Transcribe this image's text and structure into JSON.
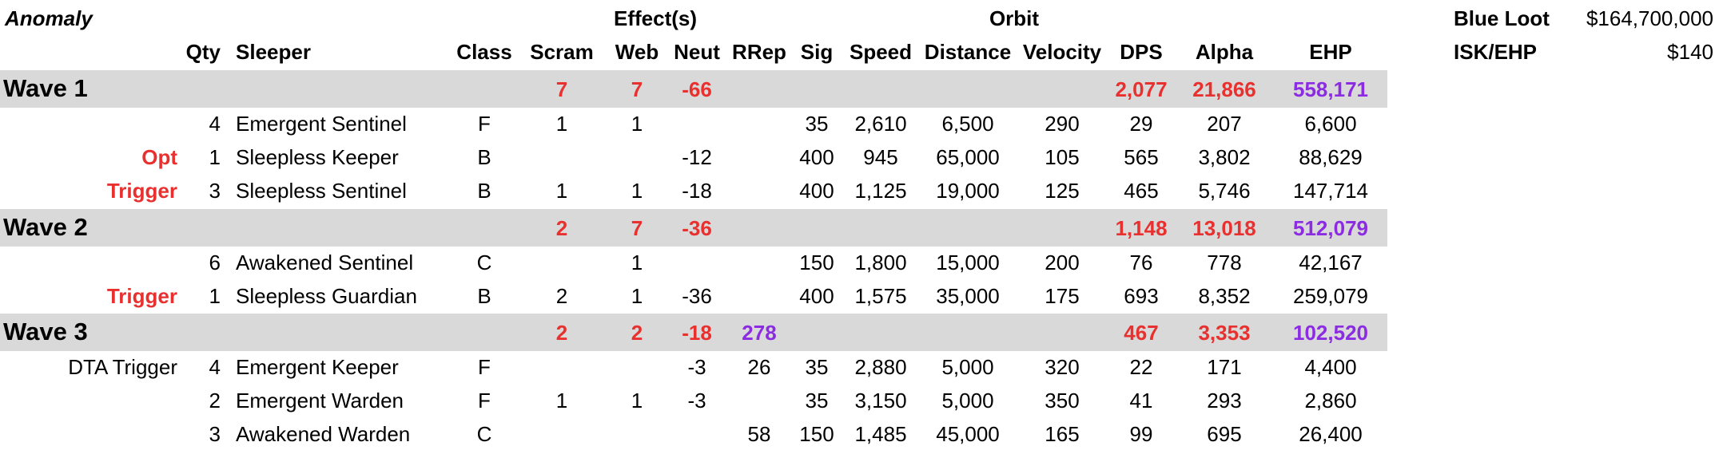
{
  "header": {
    "anomaly": "Anomaly",
    "effects": "Effect(s)",
    "orbit": "Orbit",
    "columns": {
      "qty": "Qty",
      "sleeper": "Sleeper",
      "class": "Class",
      "scram": "Scram",
      "web": "Web",
      "neut": "Neut",
      "rrep": "RRep",
      "sig": "Sig",
      "speed": "Speed",
      "distance": "Distance",
      "velocity": "Velocity",
      "dps": "DPS",
      "alpha": "Alpha",
      "ehp": "EHP"
    }
  },
  "summary": {
    "blue_loot_label": "Blue Loot",
    "blue_loot_value": "$164,700,000",
    "isk_ehp_label": "ISK/EHP",
    "isk_ehp_value": "$140"
  },
  "colors": {
    "red": "#e8312f",
    "purple": "#8b2be2",
    "band": "#d9d9d9"
  },
  "waves": [
    {
      "title": "Wave 1",
      "totals": {
        "scram": "7",
        "web": "7",
        "neut": "-66",
        "rrep": "",
        "dps": "2,077",
        "alpha": "21,866",
        "ehp": "558,171"
      },
      "rows": [
        {
          "tag": "",
          "qty": "4",
          "sleeper": "Emergent Sentinel",
          "class": "F",
          "scram": "1",
          "web": "1",
          "neut": "",
          "rrep": "",
          "sig": "35",
          "speed": "2,610",
          "distance": "6,500",
          "velocity": "290",
          "dps": "29",
          "alpha": "207",
          "ehp": "6,600"
        },
        {
          "tag": "Opt",
          "qty": "1",
          "sleeper": "Sleepless Keeper",
          "class": "B",
          "scram": "",
          "web": "",
          "neut": "-12",
          "rrep": "",
          "sig": "400",
          "speed": "945",
          "distance": "65,000",
          "velocity": "105",
          "dps": "565",
          "alpha": "3,802",
          "ehp": "88,629"
        },
        {
          "tag": "Trigger",
          "qty": "3",
          "sleeper": "Sleepless Sentinel",
          "class": "B",
          "scram": "1",
          "web": "1",
          "neut": "-18",
          "rrep": "",
          "sig": "400",
          "speed": "1,125",
          "distance": "19,000",
          "velocity": "125",
          "dps": "465",
          "alpha": "5,746",
          "ehp": "147,714"
        }
      ]
    },
    {
      "title": "Wave 2",
      "totals": {
        "scram": "2",
        "web": "7",
        "neut": "-36",
        "rrep": "",
        "dps": "1,148",
        "alpha": "13,018",
        "ehp": "512,079"
      },
      "rows": [
        {
          "tag": "",
          "qty": "6",
          "sleeper": "Awakened Sentinel",
          "class": "C",
          "scram": "",
          "web": "1",
          "neut": "",
          "rrep": "",
          "sig": "150",
          "speed": "1,800",
          "distance": "15,000",
          "velocity": "200",
          "dps": "76",
          "alpha": "778",
          "ehp": "42,167"
        },
        {
          "tag": "Trigger",
          "qty": "1",
          "sleeper": "Sleepless Guardian",
          "class": "B",
          "scram": "2",
          "web": "1",
          "neut": "-36",
          "rrep": "",
          "sig": "400",
          "speed": "1,575",
          "distance": "35,000",
          "velocity": "175",
          "dps": "693",
          "alpha": "8,352",
          "ehp": "259,079"
        }
      ]
    },
    {
      "title": "Wave 3",
      "totals": {
        "scram": "2",
        "web": "2",
        "neut": "-18",
        "rrep": "278",
        "dps": "467",
        "alpha": "3,353",
        "ehp": "102,520"
      },
      "rows": [
        {
          "tag": "DTA Trigger",
          "qty": "4",
          "sleeper": "Emergent Keeper",
          "class": "F",
          "scram": "",
          "web": "",
          "neut": "-3",
          "rrep": "26",
          "sig": "35",
          "speed": "2,880",
          "distance": "5,000",
          "velocity": "320",
          "dps": "22",
          "alpha": "171",
          "ehp": "4,400"
        },
        {
          "tag": "",
          "qty": "2",
          "sleeper": "Emergent Warden",
          "class": "F",
          "scram": "1",
          "web": "1",
          "neut": "-3",
          "rrep": "",
          "sig": "35",
          "speed": "3,150",
          "distance": "5,000",
          "velocity": "350",
          "dps": "41",
          "alpha": "293",
          "ehp": "2,860"
        },
        {
          "tag": "",
          "qty": "3",
          "sleeper": "Awakened Warden",
          "class": "C",
          "scram": "",
          "web": "",
          "neut": "",
          "rrep": "58",
          "sig": "150",
          "speed": "1,485",
          "distance": "45,000",
          "velocity": "165",
          "dps": "99",
          "alpha": "695",
          "ehp": "26,400"
        }
      ]
    }
  ]
}
